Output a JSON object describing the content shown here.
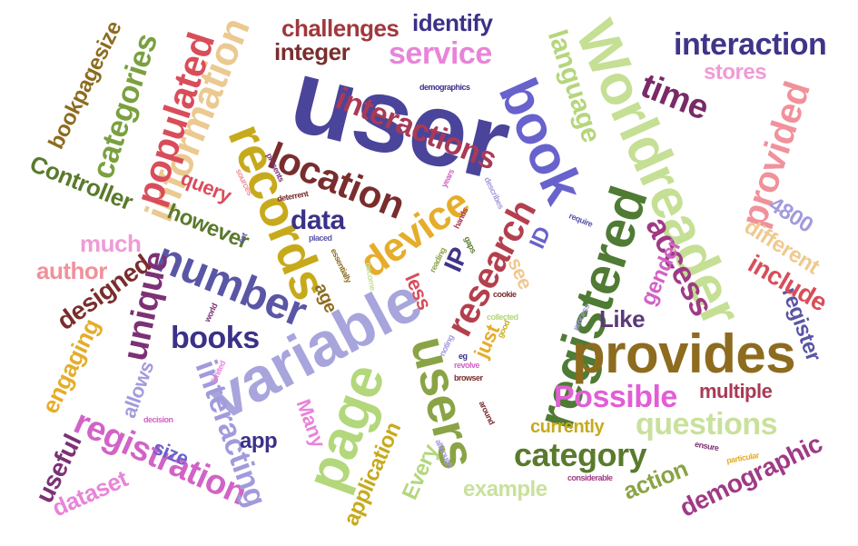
{
  "words": [
    {
      "text": "user",
      "color": "#4b449b"
    },
    {
      "text": "Worldreader",
      "color": "#c5df94"
    },
    {
      "text": "registered",
      "color": "#4f7b34"
    },
    {
      "text": "variable",
      "color": "#a7a5dc"
    },
    {
      "text": "provides",
      "color": "#8d6c1f"
    },
    {
      "text": "users",
      "color": "#8aa445"
    },
    {
      "text": "book",
      "color": "#6862cc"
    },
    {
      "text": "page",
      "color": "#b3d77b"
    },
    {
      "text": "records",
      "color": "#c7aa1c"
    },
    {
      "text": "information",
      "color": "#ebc990"
    },
    {
      "text": "number",
      "color": "#5a56a6"
    },
    {
      "text": "location",
      "color": "#7a2d2d"
    },
    {
      "text": "populated",
      "color": "#d94d5a"
    },
    {
      "text": "registration",
      "color": "#d263c6"
    },
    {
      "text": "research",
      "color": "#b4404d"
    },
    {
      "text": "interactions",
      "color": "#a93a55"
    },
    {
      "text": "interaction",
      "color": "#3f3588"
    },
    {
      "text": "device",
      "color": "#e5ad2a"
    },
    {
      "text": "category",
      "color": "#5a7a2c"
    },
    {
      "text": "questions",
      "color": "#c9e19c"
    },
    {
      "text": "Possible",
      "color": "#e25ed6"
    },
    {
      "text": "interacting",
      "color": "#a19bdc"
    },
    {
      "text": "provided",
      "color": "#f0919b"
    },
    {
      "text": "categories",
      "color": "#7aa040"
    },
    {
      "text": "time",
      "color": "#7a2a66"
    },
    {
      "text": "service",
      "color": "#e884d9"
    },
    {
      "text": "language",
      "color": "#b5d67c"
    },
    {
      "text": "unique",
      "color": "#7c3175"
    },
    {
      "text": "access",
      "color": "#a03a85"
    },
    {
      "text": "books",
      "color": "#3a3188"
    },
    {
      "text": "data",
      "color": "#3a3188"
    },
    {
      "text": "challenges",
      "color": "#a0383d"
    },
    {
      "text": "identify",
      "color": "#3a3188"
    },
    {
      "text": "integer",
      "color": "#7a2d2d"
    },
    {
      "text": "stores",
      "color": "#f09bd6"
    },
    {
      "text": "bookpagesize",
      "color": "#8d6c1f"
    },
    {
      "text": "Controller",
      "color": "#5a7a2c"
    },
    {
      "text": "query",
      "color": "#d94d5a"
    },
    {
      "text": "however",
      "color": "#5a7a2c"
    },
    {
      "text": "much",
      "color": "#f09bd6"
    },
    {
      "text": "author",
      "color": "#f0919b"
    },
    {
      "text": "designed",
      "color": "#7a2d2d"
    },
    {
      "text": "engaging",
      "color": "#e5ad2a"
    },
    {
      "text": "useful",
      "color": "#7c3175"
    },
    {
      "text": "dataset",
      "color": "#e884d9"
    },
    {
      "text": "allows",
      "color": "#a19bdc"
    },
    {
      "text": "size",
      "color": "#6862cc"
    },
    {
      "text": "app",
      "color": "#3a3188"
    },
    {
      "text": "Many",
      "color": "#e884d9"
    },
    {
      "text": "application",
      "color": "#c7aa1c"
    },
    {
      "text": "Every",
      "color": "#b3d77b"
    },
    {
      "text": "example",
      "color": "#c9e19c"
    },
    {
      "text": "action",
      "color": "#8aa445"
    },
    {
      "text": "demographic",
      "color": "#a03a85"
    },
    {
      "text": "currently",
      "color": "#c7aa1c"
    },
    {
      "text": "multiple",
      "color": "#a93a55"
    },
    {
      "text": "Like",
      "color": "#5a3a7a"
    },
    {
      "text": "register",
      "color": "#5a56a6"
    },
    {
      "text": "include",
      "color": "#d94d5a"
    },
    {
      "text": "different",
      "color": "#f0c98e"
    },
    {
      "text": "gender",
      "color": "#d263c6"
    },
    {
      "text": "4800",
      "color": "#a19bdc"
    },
    {
      "text": "IP",
      "color": "#3f3588"
    },
    {
      "text": "ID",
      "color": "#6862cc"
    },
    {
      "text": "see",
      "color": "#f0c98e"
    },
    {
      "text": "just",
      "color": "#e5ad2a"
    },
    {
      "text": "less",
      "color": "#d94d5a"
    },
    {
      "text": "age",
      "color": "#8d6c1f"
    },
    {
      "text": "demographics",
      "color": "#3a3188"
    },
    {
      "text": "presents",
      "color": "#7c3175"
    },
    {
      "text": "deterrent",
      "color": "#7a2d2d"
    },
    {
      "text": "placed",
      "color": "#5a56a6"
    },
    {
      "text": "essentially",
      "color": "#8d6c1f"
    },
    {
      "text": "years",
      "color": "#d263c6"
    },
    {
      "text": "describes",
      "color": "#a19bdc"
    },
    {
      "text": "hands",
      "color": "#a93a55"
    },
    {
      "text": "require",
      "color": "#5a56a6"
    },
    {
      "text": "gaps",
      "color": "#5a7a2c"
    },
    {
      "text": "reading",
      "color": "#8aa445"
    },
    {
      "text": "become",
      "color": "#c9e19c"
    },
    {
      "text": "cookie",
      "color": "#7a2d2d"
    },
    {
      "text": "collected",
      "color": "#b3d77b"
    },
    {
      "text": "good",
      "color": "#c7aa1c"
    },
    {
      "text": "process",
      "color": "#a19bdc"
    },
    {
      "text": "ensure",
      "color": "#7c3175"
    },
    {
      "text": "particular",
      "color": "#e5ad2a"
    },
    {
      "text": "considerable",
      "color": "#a03a85"
    },
    {
      "text": "browser",
      "color": "#7a2d2d"
    },
    {
      "text": "eg",
      "color": "#3a3188"
    },
    {
      "text": "revolve",
      "color": "#d263c6"
    },
    {
      "text": "noting",
      "color": "#a19bdc"
    },
    {
      "text": "around",
      "color": "#7a2d2d"
    },
    {
      "text": "although",
      "color": "#a19bdc"
    },
    {
      "text": "decision",
      "color": "#d263c6"
    },
    {
      "text": "world",
      "color": "#7c3175"
    },
    {
      "text": "limited",
      "color": "#e884d9"
    },
    {
      "text": "set",
      "color": "#5a56a6"
    },
    {
      "text": "sources",
      "color": "#f0919b"
    }
  ]
}
